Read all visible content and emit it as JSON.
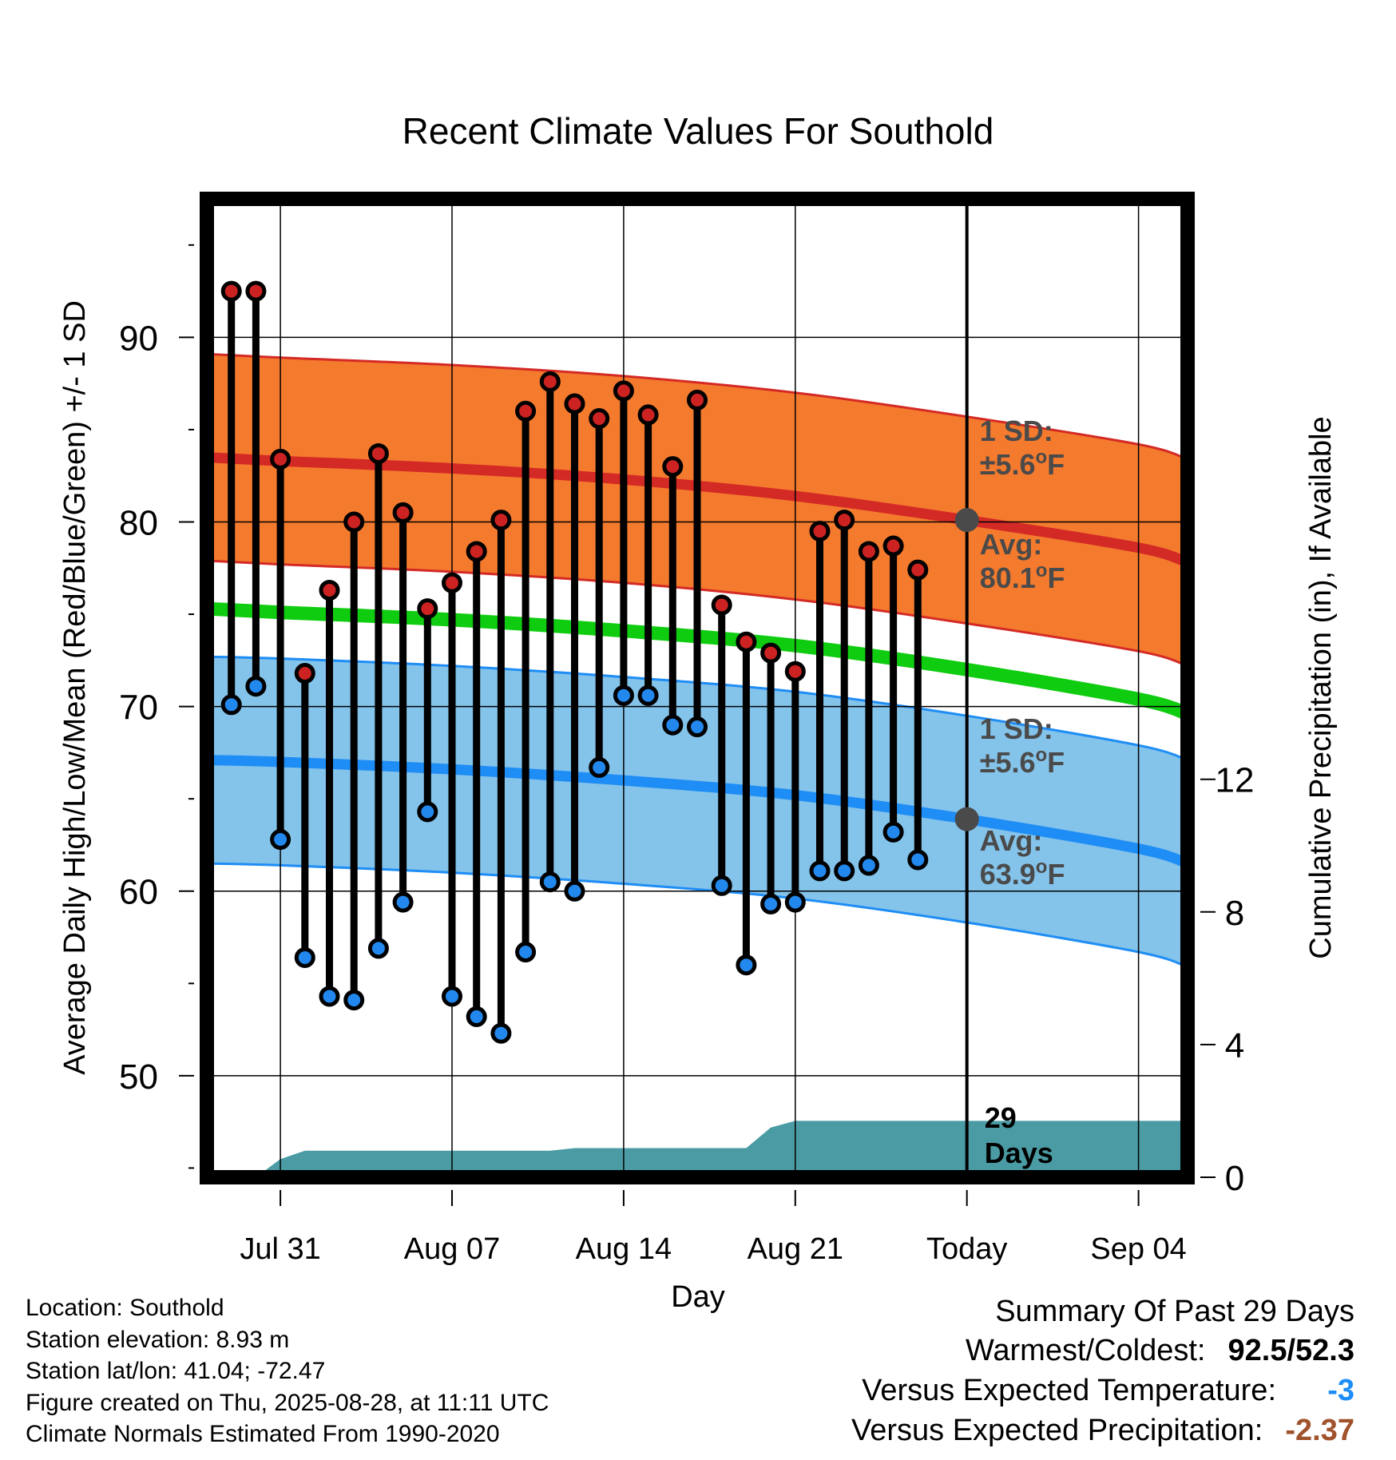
{
  "colors": {
    "high_band": "#f47a2e",
    "high_avg": "#d42a25",
    "low_band": "#84c3ea",
    "low_avg": "#1e8df5",
    "mean_line": "#10cc10",
    "precip": "#4a9ba4",
    "high_marker": "#cc2222",
    "low_marker": "#2288ee",
    "today_marker": "#4a4a4a",
    "annot_text": "#4a4a4a",
    "dep_temp": "#1e8df5",
    "dep_precip": "#a0522d"
  },
  "chart_data": {
    "type": "line",
    "title": "Recent Climate Values For Southold",
    "xlabel": "Day",
    "ylabel": "Average Daily High/Low/Mean (Red/Blue/Green) +/- 1 SD",
    "y2label": "Cumulative Precipitation (in), If Available",
    "x_tick_labels": [
      "Jul 31",
      "Aug 07",
      "Aug 14",
      "Aug 21",
      "Today",
      "Sep 04"
    ],
    "x_tick_dates": [
      "2025-07-31",
      "2025-08-07",
      "2025-08-14",
      "2025-08-21",
      "2025-08-28",
      "2025-09-04"
    ],
    "xlim": [
      "2025-07-28",
      "2025-09-06"
    ],
    "ylim": [
      44.5,
      97.5
    ],
    "y_ticks": [
      50,
      60,
      70,
      80,
      90
    ],
    "y2lim": [
      0,
      29.5
    ],
    "y2_ticks": [
      0,
      4,
      8,
      12
    ],
    "grid": true,
    "dates": [
      "2025-07-29",
      "2025-07-30",
      "2025-07-31",
      "2025-08-01",
      "2025-08-02",
      "2025-08-03",
      "2025-08-04",
      "2025-08-05",
      "2025-08-06",
      "2025-08-07",
      "2025-08-08",
      "2025-08-09",
      "2025-08-10",
      "2025-08-11",
      "2025-08-12",
      "2025-08-13",
      "2025-08-14",
      "2025-08-15",
      "2025-08-16",
      "2025-08-17",
      "2025-08-18",
      "2025-08-19",
      "2025-08-20",
      "2025-08-21",
      "2025-08-22",
      "2025-08-23",
      "2025-08-24",
      "2025-08-25",
      "2025-08-26",
      "2025-08-27"
    ],
    "highs": [
      92.5,
      92.5,
      83.4,
      71.8,
      76.3,
      80.0,
      83.7,
      80.5,
      75.3,
      76.7,
      78.4,
      80.1,
      86.0,
      87.6,
      86.4,
      85.6,
      87.1,
      85.8,
      83.0,
      86.6,
      75.5,
      73.5,
      72.9,
      71.9,
      79.5,
      80.1,
      78.4,
      78.7,
      77.4
    ],
    "lows": [
      70.1,
      71.1,
      62.8,
      56.4,
      54.3,
      54.1,
      56.9,
      59.4,
      64.3,
      54.3,
      53.2,
      52.3,
      56.7,
      60.5,
      60.0,
      66.7,
      70.6,
      70.6,
      69.0,
      68.9,
      60.3,
      56.0,
      59.3,
      59.4,
      61.1,
      61.1,
      61.4,
      63.2,
      61.7
    ],
    "normals": {
      "dates": [
        "2025-07-28",
        "2025-07-31",
        "2025-08-07",
        "2025-08-14",
        "2025-08-21",
        "2025-08-28",
        "2025-09-04",
        "2025-09-06"
      ],
      "high_avg": [
        83.5,
        83.3,
        82.9,
        82.3,
        81.4,
        80.1,
        78.6,
        77.8
      ],
      "low_avg": [
        67.1,
        67.0,
        66.6,
        66.0,
        65.2,
        63.9,
        62.3,
        61.5
      ],
      "mean": [
        75.3,
        75.1,
        74.7,
        74.1,
        73.3,
        72.0,
        70.4,
        69.6
      ],
      "sd": 5.6
    },
    "precip_dates": [
      "2025-07-29",
      "2025-07-30",
      "2025-07-31",
      "2025-08-01",
      "2025-08-02",
      "2025-08-08",
      "2025-08-11",
      "2025-08-12",
      "2025-08-17",
      "2025-08-18",
      "2025-08-19",
      "2025-08-20",
      "2025-08-21",
      "2025-08-27",
      "2025-09-06"
    ],
    "precip_cumulative": [
      0,
      0,
      0.55,
      0.8,
      0.8,
      0.8,
      0.8,
      0.88,
      0.88,
      0.88,
      0.88,
      1.5,
      1.7,
      1.7,
      1.7
    ],
    "annotations": {
      "high_sd": [
        "1 SD:",
        "±5.6",
        "F"
      ],
      "high_avg": [
        "Avg:",
        "80.1",
        "F"
      ],
      "low_sd": [
        "1 SD:",
        "±5.6",
        "F"
      ],
      "low_avg": [
        "Avg:",
        "63.9",
        "F"
      ],
      "degree": "o",
      "days": [
        "29",
        "Days"
      ]
    }
  },
  "info": [
    "Location: Southold",
    "Station elevation: 8.93 m",
    "Station lat/lon: 41.04; -72.47",
    "Figure created on Thu, 2025-08-28, at 11:11 UTC",
    "Climate Normals Estimated From 1990-2020"
  ],
  "summary": {
    "title": "Summary Of Past 29 Days",
    "warm_cold_label": "Warmest/Coldest:",
    "warm_value": "92.5",
    "slash": "/",
    "cold_value": "52.3",
    "temp_label": "Versus Expected Temperature:",
    "temp_value": "-3",
    "precip_label": "Versus Expected Precipitation:",
    "precip_value": "-2.37"
  }
}
